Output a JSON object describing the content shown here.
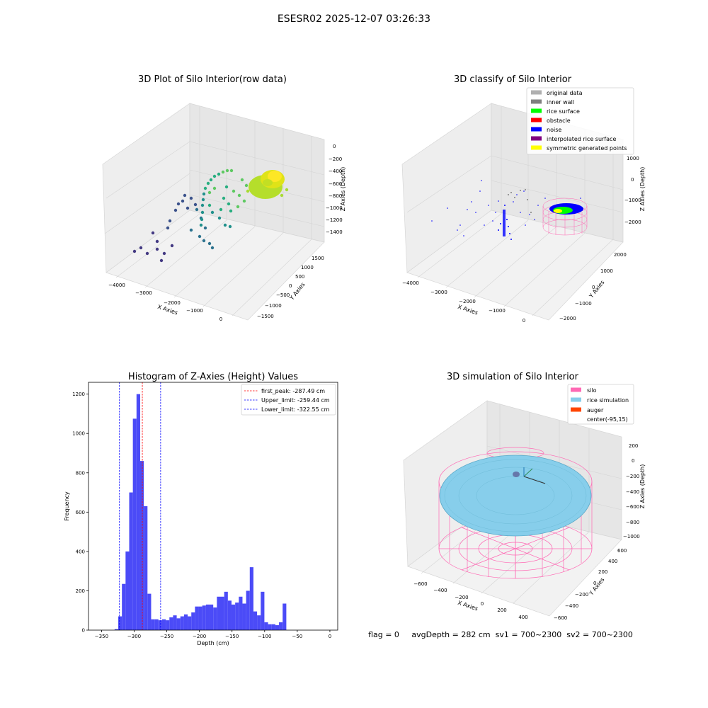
{
  "figure": {
    "suptitle": "ESESR02 2025-12-07 03:26:33",
    "footer": "flag = 0     avgDepth = 282 cm  sv1 = 700~2300  sv2 = 700~2300"
  },
  "panels": {
    "raw": {
      "title": "3D Plot of Silo Interior(row data)",
      "xlabel": "X Axies",
      "ylabel": "Y Axies",
      "zlabel": "Z Axies (Depth)",
      "xticks": [
        "−4000",
        "−3000",
        "−2000",
        "−1000",
        "0"
      ],
      "yticks": [
        "1500",
        "1000",
        "500",
        "0",
        "−500",
        "−1000",
        "−1500"
      ],
      "zticks": [
        "0",
        "−200",
        "−400",
        "−600",
        "−800",
        "−1000",
        "−1200",
        "−1400"
      ]
    },
    "classify": {
      "title": "3D classify of Silo Interior",
      "xlabel": "X Axies",
      "ylabel": "Y Axies",
      "zlabel": "Z Axies (Depth)",
      "xticks": [
        "−4000",
        "−3000",
        "−2000",
        "−1000",
        "0"
      ],
      "yticks": [
        "2000",
        "1000",
        "0",
        "−1000",
        "−2000"
      ],
      "zticks": [
        "1000",
        "0",
        "−1000",
        "−2000"
      ],
      "legend": [
        {
          "label": "original data",
          "color": "#b0b0b0"
        },
        {
          "label": "inner wall",
          "color": "#808080"
        },
        {
          "label": "rice surface",
          "color": "#00ff00"
        },
        {
          "label": "obstacle",
          "color": "#ff0000"
        },
        {
          "label": "noise",
          "color": "#0000ff"
        },
        {
          "label": "interpolated rice surface",
          "color": "#800080"
        },
        {
          "label": "symmetric generated points",
          "color": "#ffff00"
        }
      ]
    },
    "histogram": {
      "title": "Histogram of Z-Axies (Height) Values",
      "xlabel": "Depth (cm)",
      "ylabel": "Frequency",
      "legend": [
        {
          "label": "first_peak: -287.49 cm",
          "color": "#ff0000"
        },
        {
          "label": "Upper_limit: -259.44 cm",
          "color": "#0000ff"
        },
        {
          "label": "Lower_limit: -322.55 cm",
          "color": "#0000ff"
        }
      ]
    },
    "simulation": {
      "title": "3D simulation of Silo Interior",
      "xlabel": "X Axies",
      "ylabel": "Y Axies",
      "zlabel": "Z Axies (Depth)",
      "xticks": [
        "−600",
        "−400",
        "−200",
        "0",
        "200",
        "400"
      ],
      "yticks": [
        "600",
        "400",
        "200",
        "0",
        "−200",
        "−400",
        "−600"
      ],
      "zticks": [
        "200",
        "0",
        "−200",
        "−400",
        "−600",
        "−800",
        "−1000"
      ],
      "legend": [
        {
          "label": "silo",
          "color": "#ff69b4"
        },
        {
          "label": "rice simulation",
          "color": "#87ceeb"
        },
        {
          "label": "auger",
          "color": "#ff4500"
        },
        {
          "label": "center(-95,15)",
          "color": "none"
        }
      ]
    }
  },
  "chart_data": [
    {
      "type": "scatter",
      "title": "3D Plot of Silo Interior(row data)",
      "xlabel": "X Axies",
      "ylabel": "Y Axies",
      "zlabel": "Z Axies (Depth)",
      "xlim": [
        -4300,
        200
      ],
      "ylim": [
        -1500,
        1700
      ],
      "zlim": [
        -1500,
        100
      ],
      "colormap": "viridis"
    },
    {
      "type": "scatter",
      "title": "3D classify of Silo Interior",
      "xlabel": "X Axies",
      "ylabel": "Y Axies",
      "zlabel": "Z Axies (Depth)",
      "xlim": [
        -4300,
        200
      ],
      "ylim": [
        -2200,
        2200
      ],
      "zlim": [
        -2600,
        1100
      ]
    },
    {
      "type": "bar",
      "title": "Histogram of Z-Axies (Height) Values",
      "xlabel": "Depth (cm)",
      "ylabel": "Frequency",
      "xlim": [
        -370,
        12
      ],
      "ylim": [
        0,
        1260
      ],
      "xticks": [
        -350,
        -300,
        -250,
        -200,
        -150,
        -100,
        -50,
        0
      ],
      "yticks": [
        0,
        200,
        400,
        600,
        800,
        1000,
        1200
      ],
      "bin_width": 5.6,
      "bin_start": -330,
      "values": [
        5,
        70,
        235,
        400,
        700,
        1075,
        1200,
        860,
        630,
        185,
        55,
        55,
        50,
        55,
        50,
        65,
        75,
        60,
        70,
        80,
        70,
        90,
        120,
        120,
        125,
        130,
        130,
        115,
        170,
        170,
        195,
        150,
        130,
        140,
        170,
        135,
        200,
        320,
        95,
        75,
        195,
        40,
        30,
        30,
        25,
        40,
        135
      ],
      "vlines": [
        {
          "x": -287.49,
          "color": "#ff0000",
          "style": "dashed"
        },
        {
          "x": -259.44,
          "color": "#0000ff",
          "style": "dashed"
        },
        {
          "x": -322.55,
          "color": "#0000ff",
          "style": "dashed"
        }
      ]
    },
    {
      "type": "area",
      "title": "3D simulation of Silo Interior",
      "xlabel": "X Axies",
      "ylabel": "Y Axies",
      "zlabel": "Z Axies (Depth)",
      "xlim": [
        -700,
        500
      ],
      "ylim": [
        -600,
        600
      ],
      "zlim": [
        -1050,
        300
      ]
    }
  ]
}
